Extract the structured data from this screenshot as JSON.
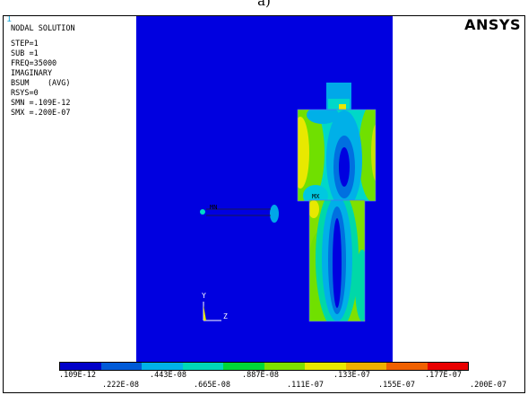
{
  "caption": "a)",
  "window_number": "1",
  "brand": "ANSYS",
  "info": {
    "title": "NODAL SOLUTION",
    "lines": [
      "STEP=1",
      "SUB =1",
      "FREQ=35000",
      "IMAGINARY",
      "BSUM    (AVG)",
      "RSYS=0",
      "SMN =.109E-12",
      "SMX =.200E-07"
    ]
  },
  "markers": {
    "mn": "MN",
    "mx": "MX",
    "y_axis": "Y",
    "z_axis": "Z"
  },
  "legend": {
    "colors": [
      "#0000c8",
      "#005ad8",
      "#00b2e8",
      "#00d8b8",
      "#00d838",
      "#7ee000",
      "#e8e800",
      "#f0b000",
      "#f06000",
      "#e80000"
    ],
    "top_labels": [
      ".109E-12",
      ".443E-08",
      ".887E-08",
      ".133E-07",
      ".177E-07"
    ],
    "bottom_labels": [
      ".222E-08",
      ".665E-08",
      ".111E-07",
      ".155E-07",
      ".200E-07"
    ]
  }
}
